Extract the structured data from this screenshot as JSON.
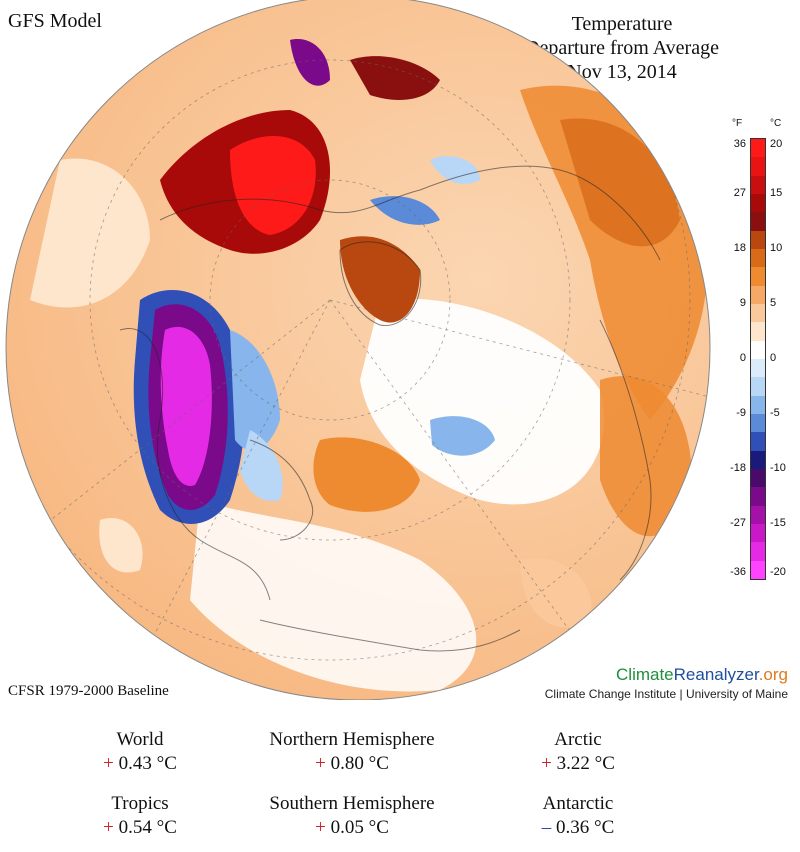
{
  "header": {
    "model": "GFS Model",
    "title_lines": [
      "Temperature",
      "Departure from Average",
      "Nov 13, 2014"
    ]
  },
  "footer": {
    "baseline": "CFSR 1979-2000 Baseline",
    "brand_parts": [
      {
        "text": "Climate",
        "color": "#1f8f3a"
      },
      {
        "text": "Reanalyzer",
        "color": "#1f4fa0"
      },
      {
        "text": ".org",
        "color": "#e07a1f"
      }
    ],
    "institute": "Climate Change Institute | University of Maine"
  },
  "legend": {
    "unit_f": "°F",
    "unit_c": "°C",
    "ticks_f": [
      "36",
      "27",
      "18",
      "9",
      "0",
      "-9",
      "-18",
      "-27",
      "-36"
    ],
    "ticks_c": [
      "20",
      "15",
      "10",
      "5",
      "0",
      "-5",
      "-10",
      "-15",
      "-20"
    ],
    "colors": [
      "#ff1a1a",
      "#e81414",
      "#c80e0e",
      "#a80a0a",
      "#8a1010",
      "#b84810",
      "#d86a18",
      "#ee8a30",
      "#f6a866",
      "#fac89a",
      "#fde6cc",
      "#ffffff",
      "#dcebfa",
      "#b8d6f5",
      "#88b6ec",
      "#5a8ad8",
      "#3050b8",
      "#1a1a7a",
      "#4a0a6a",
      "#7a0a8a",
      "#a410a8",
      "#c818c8",
      "#e42ae4",
      "#ff44ff"
    ]
  },
  "stats": [
    {
      "region": "World",
      "sign": "+",
      "value": "0.43 °C",
      "positive": true
    },
    {
      "region": "Northern Hemisphere",
      "sign": "+",
      "value": "0.80 °C",
      "positive": true
    },
    {
      "region": "Arctic",
      "sign": "+",
      "value": "3.22 °C",
      "positive": true
    },
    {
      "region": "Tropics",
      "sign": "+",
      "value": "0.54 °C",
      "positive": true
    },
    {
      "region": "Southern Hemisphere",
      "sign": "+",
      "value": "0.05 °C",
      "positive": true
    },
    {
      "region": "Antarctic",
      "sign": "–",
      "value": "0.36 °C",
      "positive": false
    }
  ]
}
